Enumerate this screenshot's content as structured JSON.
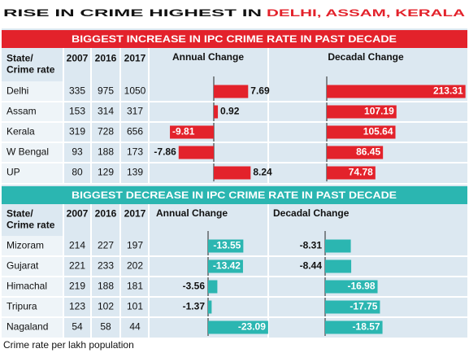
{
  "title": {
    "prefix": "RISE IN CRIME HIGHEST IN",
    "highlight": "DELHI, ASSAM, KERALA"
  },
  "sections": [
    {
      "heading": "BIGGEST INCREASE IN IPC CRIME RATE IN PAST DECADE",
      "color": "#e3222b",
      "columns": {
        "state": [
          "State/",
          "Crime rate"
        ],
        "years": [
          "2007",
          "2016",
          "2017"
        ],
        "annual": "Annual Change",
        "decadal": "Decadal Change"
      },
      "rows": [
        {
          "state": "Delhi",
          "values": [
            335,
            975,
            1050
          ],
          "annual": 7.69,
          "decadal": 213.31
        },
        {
          "state": "Assam",
          "values": [
            153,
            314,
            317
          ],
          "annual": 0.92,
          "decadal": 107.19
        },
        {
          "state": "Kerala",
          "values": [
            319,
            728,
            656
          ],
          "annual": -9.81,
          "decadal": 105.64
        },
        {
          "state": "W Bengal",
          "values": [
            93,
            188,
            173
          ],
          "annual": -7.86,
          "decadal": 86.45
        },
        {
          "state": "UP",
          "values": [
            80,
            129,
            139
          ],
          "annual": 8.24,
          "decadal": 74.78
        }
      ]
    },
    {
      "heading": "BIGGEST DECREASE IN IPC CRIME RATE IN PAST DECADE",
      "color": "#2bb6b1",
      "columns": {
        "state": [
          "State/",
          "Crime rate"
        ],
        "years": [
          "2007",
          "2016",
          "2017"
        ],
        "annual": "Annual Change",
        "decadal": "Decadal Change"
      },
      "rows": [
        {
          "state": "Mizoram",
          "values": [
            214,
            227,
            197
          ],
          "annual": -13.55,
          "decadal": -8.31
        },
        {
          "state": "Gujarat",
          "values": [
            221,
            233,
            202
          ],
          "annual": -13.42,
          "decadal": -8.44
        },
        {
          "state": "Himachal",
          "values": [
            219,
            188,
            181
          ],
          "annual": -3.56,
          "decadal": -16.98
        },
        {
          "state": "Tripura",
          "values": [
            123,
            102,
            101
          ],
          "annual": -1.37,
          "decadal": -17.75
        },
        {
          "state": "Nagaland",
          "values": [
            54,
            58,
            44
          ],
          "annual": -23.09,
          "decadal": -18.57
        }
      ]
    }
  ],
  "footnote": "Crime rate per lakh population"
}
